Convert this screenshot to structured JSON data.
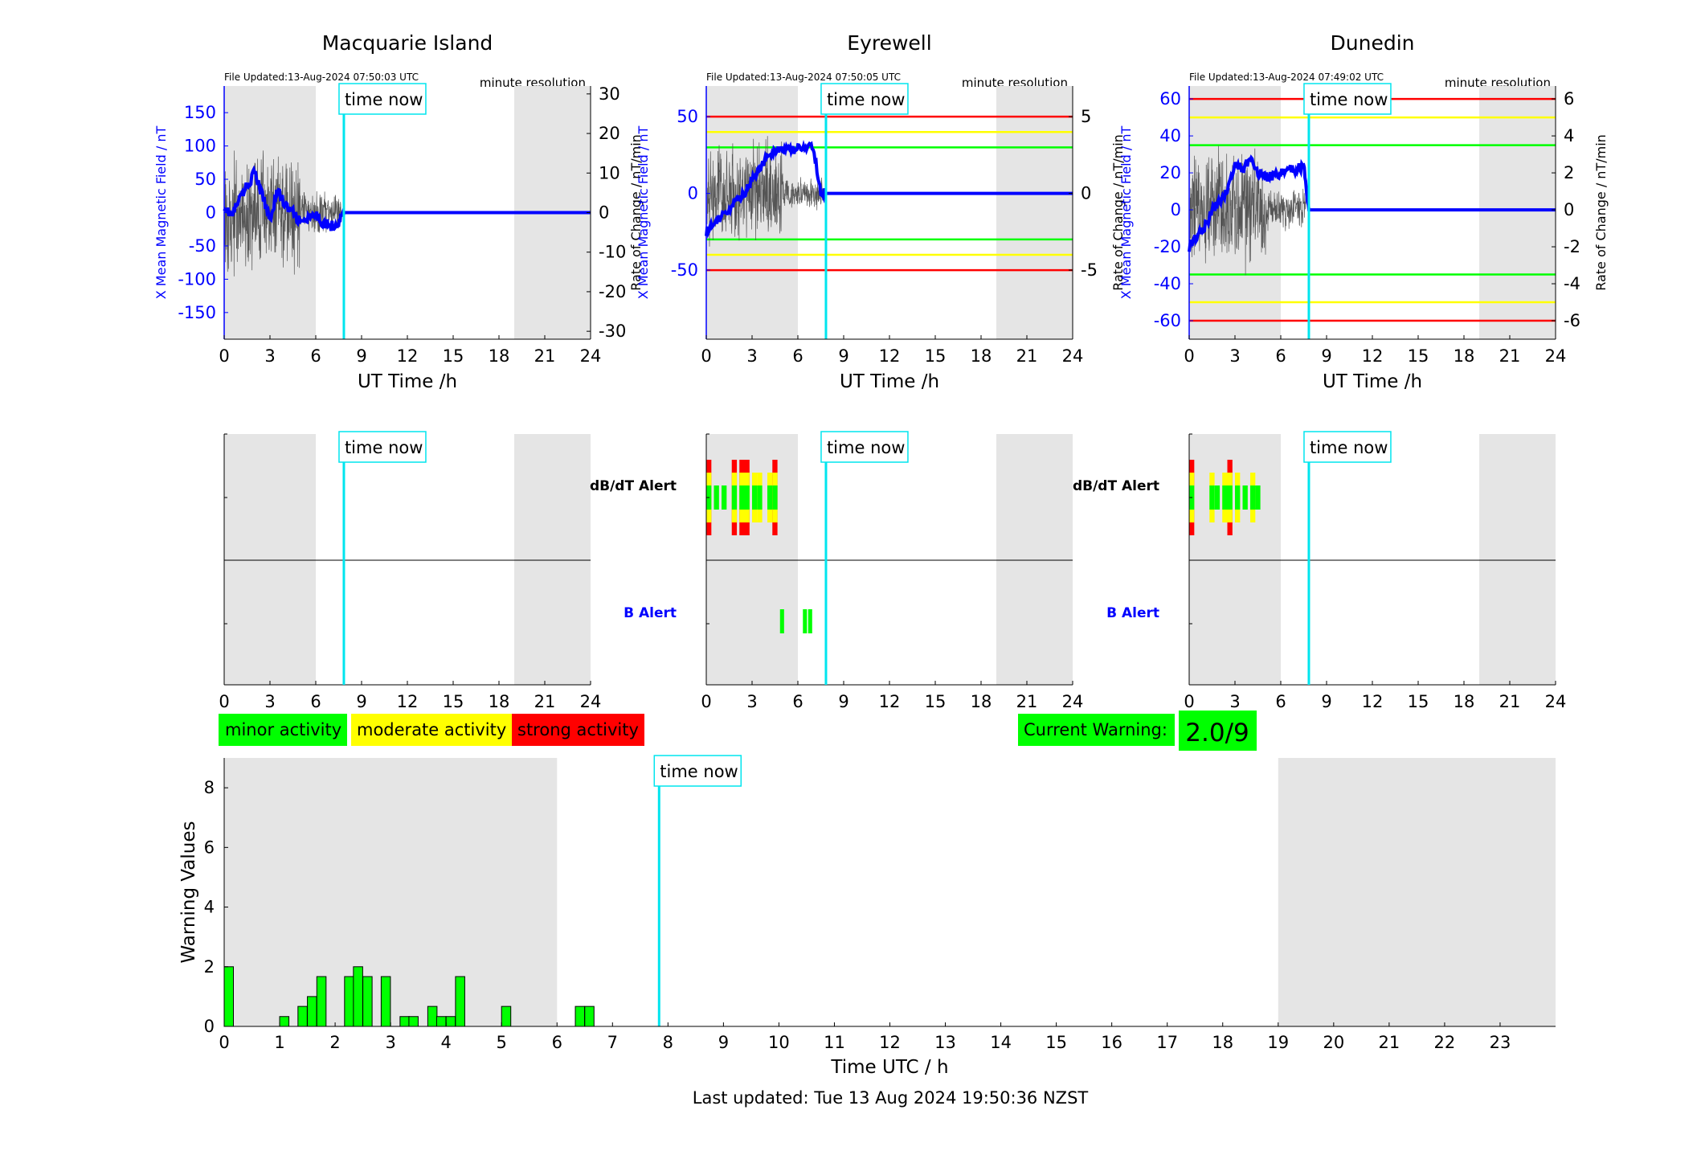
{
  "stations": [
    {
      "title": "Macquarie Island",
      "file_updated": "File Updated:13-Aug-2024 07:50:03 UTC",
      "resolution": "minute resolution",
      "left_ticks": [
        -150,
        -100,
        -50,
        0,
        50,
        100,
        150
      ],
      "right_ticks": [
        -30,
        -20,
        -10,
        0,
        10,
        20,
        30
      ],
      "left_range": [
        -190,
        190
      ],
      "right_range": [
        -32,
        32
      ],
      "thresholds": [],
      "show_dbdt_label": false,
      "show_b_label": false
    },
    {
      "title": "Eyrewell",
      "file_updated": "File Updated:13-Aug-2024 07:50:05 UTC",
      "resolution": "minute resolution",
      "left_ticks": [
        -50,
        0,
        50
      ],
      "right_ticks": [
        -5,
        0,
        5
      ],
      "left_range": [
        -95,
        70
      ],
      "right_range": [
        -9.5,
        7
      ],
      "thresholds": [
        {
          "color": "#ff0000",
          "value": 50
        },
        {
          "color": "#ffff00",
          "value": 40
        },
        {
          "color": "#00ff00",
          "value": 30
        },
        {
          "color": "#00ff00",
          "value": -30
        },
        {
          "color": "#ffff00",
          "value": -40
        },
        {
          "color": "#ff0000",
          "value": -50
        }
      ],
      "show_dbdt_label": true,
      "show_b_label": true
    },
    {
      "title": "Dunedin",
      "file_updated": "File Updated:13-Aug-2024 07:49:02 UTC",
      "resolution": "minute resolution",
      "left_ticks": [
        -60,
        -40,
        -20,
        0,
        20,
        40,
        60
      ],
      "right_ticks": [
        -6,
        -4,
        -2,
        0,
        2,
        4,
        6
      ],
      "left_range": [
        -70,
        67
      ],
      "right_range": [
        -7,
        6.7
      ],
      "thresholds": [
        {
          "color": "#ff0000",
          "value": 60
        },
        {
          "color": "#ffff00",
          "value": 50
        },
        {
          "color": "#00ff00",
          "value": 35
        },
        {
          "color": "#00ff00",
          "value": -35
        },
        {
          "color": "#ffff00",
          "value": -50
        },
        {
          "color": "#ff0000",
          "value": -60
        }
      ],
      "show_dbdt_label": true,
      "show_b_label": true
    }
  ],
  "labels": {
    "left_ylabel": "X Mean Magnetic Field / nT",
    "right_ylabel": "Rate of Change / nT/min",
    "xlabel": "UT Time /h",
    "time_now": "time now",
    "dbdt_alert": "dB/dT Alert",
    "b_alert": "B Alert",
    "x_ticks": [
      0,
      3,
      6,
      9,
      12,
      15,
      18,
      21,
      24
    ]
  },
  "night_shading_hours": [
    [
      0,
      6
    ],
    [
      19,
      24
    ]
  ],
  "time_now_hour": 7.84,
  "legend": {
    "minor": "minor activity",
    "moderate": "moderate activity",
    "strong": "strong activity"
  },
  "colors": {
    "minor": "#00ff00",
    "moderate": "#ffff00",
    "strong": "#ff0000",
    "field": "#0000ff",
    "time_now": "#00e5ee",
    "shade": "#e5e5e5",
    "rate": "#666666"
  },
  "current_warning": {
    "label": "Current Warning:",
    "value": "2.0/9"
  },
  "chart_data": [
    {
      "type": "line",
      "panel": "Macquarie Island",
      "note": "X field (blue, left axis) and rate of change (grey, right axis) vs UT hour",
      "x": [
        0,
        0.5,
        1,
        1.5,
        2,
        2.5,
        3,
        3.5,
        4,
        4.5,
        5,
        5.5,
        6,
        6.5,
        7,
        7.5,
        7.84,
        24
      ],
      "series": [
        {
          "name": "X Mean Magnetic Field / nT",
          "values": [
            10,
            -5,
            20,
            40,
            60,
            25,
            -10,
            35,
            10,
            0,
            -15,
            -10,
            -5,
            -15,
            -20,
            -15,
            0,
            0
          ]
        }
      ]
    },
    {
      "type": "line",
      "panel": "Eyrewell",
      "x": [
        0,
        0.5,
        1,
        1.5,
        2,
        2.5,
        3,
        3.5,
        4,
        4.5,
        5,
        5.5,
        6,
        6.5,
        7,
        7.5,
        7.84,
        24
      ],
      "series": [
        {
          "name": "X Mean Magnetic Field / nT",
          "values": [
            -25,
            -20,
            -15,
            -10,
            -5,
            0,
            10,
            15,
            25,
            28,
            28,
            28,
            29,
            30,
            30,
            0,
            0,
            0
          ]
        }
      ]
    },
    {
      "type": "line",
      "panel": "Dunedin",
      "x": [
        0,
        0.5,
        1,
        1.5,
        2,
        2.5,
        3,
        3.5,
        4,
        4.5,
        5,
        5.5,
        6,
        6.5,
        7,
        7.5,
        7.84,
        24
      ],
      "series": [
        {
          "name": "X Mean Magnetic Field / nT",
          "values": [
            -20,
            -15,
            -10,
            0,
            5,
            10,
            25,
            22,
            28,
            20,
            18,
            18,
            20,
            22,
            22,
            24,
            0,
            0
          ]
        }
      ]
    },
    {
      "type": "bar",
      "panel": "Warning Values",
      "xlabel": "Time UTC / h",
      "ylabel": "Warning Values",
      "ylim": [
        0,
        9
      ],
      "x": [
        0,
        1,
        1.33,
        1.5,
        1.67,
        2.17,
        2.33,
        2.5,
        2.83,
        3.17,
        3.33,
        3.67,
        3.83,
        4.0,
        4.17,
        5.0,
        6.33,
        6.5
      ],
      "values": [
        2,
        0.33,
        0.67,
        1,
        1.67,
        1.67,
        2,
        1.67,
        1.67,
        0.33,
        0.33,
        0.67,
        0.33,
        0.33,
        1.67,
        0.67,
        0.67,
        0.67
      ],
      "x_ticks": [
        0,
        1,
        2,
        3,
        4,
        5,
        6,
        7,
        8,
        9,
        10,
        11,
        12,
        13,
        14,
        15,
        16,
        17,
        18,
        19,
        20,
        21,
        22,
        23
      ],
      "y_ticks": [
        0,
        2,
        4,
        6,
        8
      ]
    }
  ],
  "alerts": {
    "Eyrewell": {
      "dbdt": [
        {
          "h": 0,
          "l": "r"
        },
        {
          "h": 0.5,
          "l": "g"
        },
        {
          "h": 1.0,
          "l": "g"
        },
        {
          "h": 1.67,
          "l": "r"
        },
        {
          "h": 2.17,
          "l": "r"
        },
        {
          "h": 2.5,
          "l": "r"
        },
        {
          "h": 3.0,
          "l": "y"
        },
        {
          "h": 3.33,
          "l": "y"
        },
        {
          "h": 4.0,
          "l": "y"
        },
        {
          "h": 4.33,
          "l": "r"
        }
      ],
      "b": [
        {
          "h": 4.83,
          "l": "g"
        },
        {
          "h": 6.33,
          "l": "g"
        },
        {
          "h": 6.67,
          "l": "g"
        }
      ]
    },
    "Dunedin": {
      "dbdt": [
        {
          "h": 0,
          "l": "r"
        },
        {
          "h": 1.33,
          "l": "y"
        },
        {
          "h": 1.67,
          "l": "g"
        },
        {
          "h": 2.17,
          "l": "y"
        },
        {
          "h": 2.5,
          "l": "r"
        },
        {
          "h": 3.0,
          "l": "y"
        },
        {
          "h": 3.5,
          "l": "g"
        },
        {
          "h": 4.0,
          "l": "y"
        },
        {
          "h": 4.33,
          "l": "g"
        }
      ],
      "b": []
    }
  },
  "bottom": {
    "xlabel": "Time UTC / h",
    "ylabel": "Warning Values",
    "footer": "Last updated: Tue 13 Aug 2024 19:50:36 NZST"
  }
}
